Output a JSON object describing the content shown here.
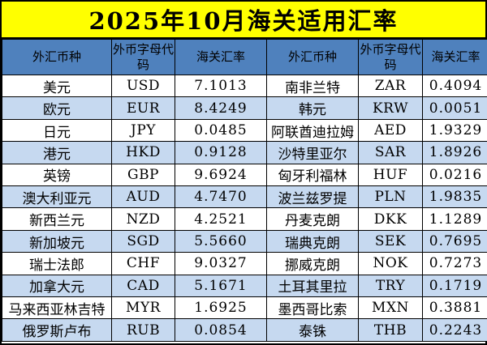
{
  "title": "2025年10月海关适用汇率",
  "table": {
    "headers": [
      "外汇币种",
      "外币字母代码",
      "海关汇率",
      "外汇币种",
      "外币字母代码",
      "海关汇率"
    ],
    "rows": [
      {
        "l_name": "美元",
        "l_code": "USD",
        "l_rate": "7.1013",
        "r_name": "南非兰特",
        "r_code": "ZAR",
        "r_rate": "0.4094"
      },
      {
        "l_name": "欧元",
        "l_code": "EUR",
        "l_rate": "8.4249",
        "r_name": "韩元",
        "r_code": "KRW",
        "r_rate": "0.0051"
      },
      {
        "l_name": "日元",
        "l_code": "JPY",
        "l_rate": "0.0485",
        "r_name": "阿联酋迪拉姆",
        "r_code": "AED",
        "r_rate": "1.9329"
      },
      {
        "l_name": "港元",
        "l_code": "HKD",
        "l_rate": "0.9128",
        "r_name": "沙特里亚尔",
        "r_code": "SAR",
        "r_rate": "1.8926"
      },
      {
        "l_name": "英镑",
        "l_code": "GBP",
        "l_rate": "9.6924",
        "r_name": "匈牙利福林",
        "r_code": "HUF",
        "r_rate": "0.0216"
      },
      {
        "l_name": "澳大利亚元",
        "l_code": "AUD",
        "l_rate": "4.7470",
        "r_name": "波兰兹罗提",
        "r_code": "PLN",
        "r_rate": "1.9835"
      },
      {
        "l_name": "新西兰元",
        "l_code": "NZD",
        "l_rate": "4.2521",
        "r_name": "丹麦克朗",
        "r_code": "DKK",
        "r_rate": "1.1289"
      },
      {
        "l_name": "新加坡元",
        "l_code": "SGD",
        "l_rate": "5.5660",
        "r_name": "瑞典克朗",
        "r_code": "SEK",
        "r_rate": "0.7695"
      },
      {
        "l_name": "瑞士法郎",
        "l_code": "CHF",
        "l_rate": "9.0327",
        "r_name": "挪威克朗",
        "r_code": "NOK",
        "r_rate": "0.7273"
      },
      {
        "l_name": "加拿大元",
        "l_code": "CAD",
        "l_rate": "5.1671",
        "r_name": "土耳其里拉",
        "r_code": "TRY",
        "r_rate": "0.1719"
      },
      {
        "l_name": "马来西亚林吉特",
        "l_code": "MYR",
        "l_rate": "1.6925",
        "r_name": "墨西哥比索",
        "r_code": "MXN",
        "r_rate": "0.3881"
      },
      {
        "l_name": "俄罗斯卢布",
        "l_code": "RUB",
        "l_rate": "0.0854",
        "r_name": "泰铢",
        "r_code": "THB",
        "r_rate": "0.2243"
      }
    ]
  },
  "colors": {
    "title_bg": "#FFFF00",
    "header_bg": "#4F81BD",
    "stripe_bg": "#C6D9F0",
    "row_bg": "#FFFFFF",
    "border": "#000000",
    "text": "#000000"
  }
}
